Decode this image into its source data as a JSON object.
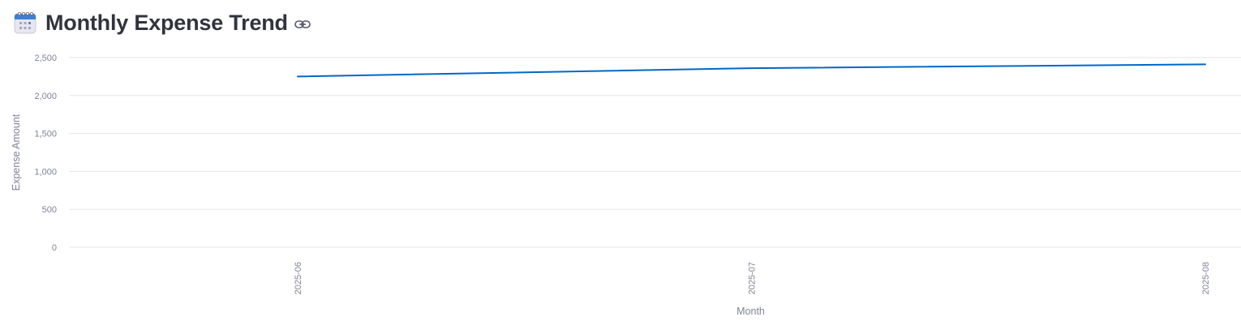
{
  "header": {
    "title": "Monthly Expense Trend",
    "icon": "calendar-icon",
    "anchor_icon": "link-icon"
  },
  "colors": {
    "line": "#0068c9",
    "grid": "#e6e6e9",
    "tick_text": "#808495",
    "title_text": "#31333f"
  },
  "chart_data": {
    "type": "line",
    "x": [
      "2025-06",
      "2025-07",
      "2025-08"
    ],
    "series": [
      {
        "values": [
          2250,
          2360,
          2410
        ]
      }
    ],
    "xlabel": "Month",
    "ylabel": "Expense Amount",
    "ylim": [
      0,
      2500
    ],
    "yticks": [
      0,
      500,
      1000,
      1500,
      2000,
      2500
    ],
    "ytick_labels": [
      "0",
      "500",
      "1,000",
      "1,500",
      "2,000",
      "2,500"
    ],
    "grid": true,
    "legend": "none"
  }
}
